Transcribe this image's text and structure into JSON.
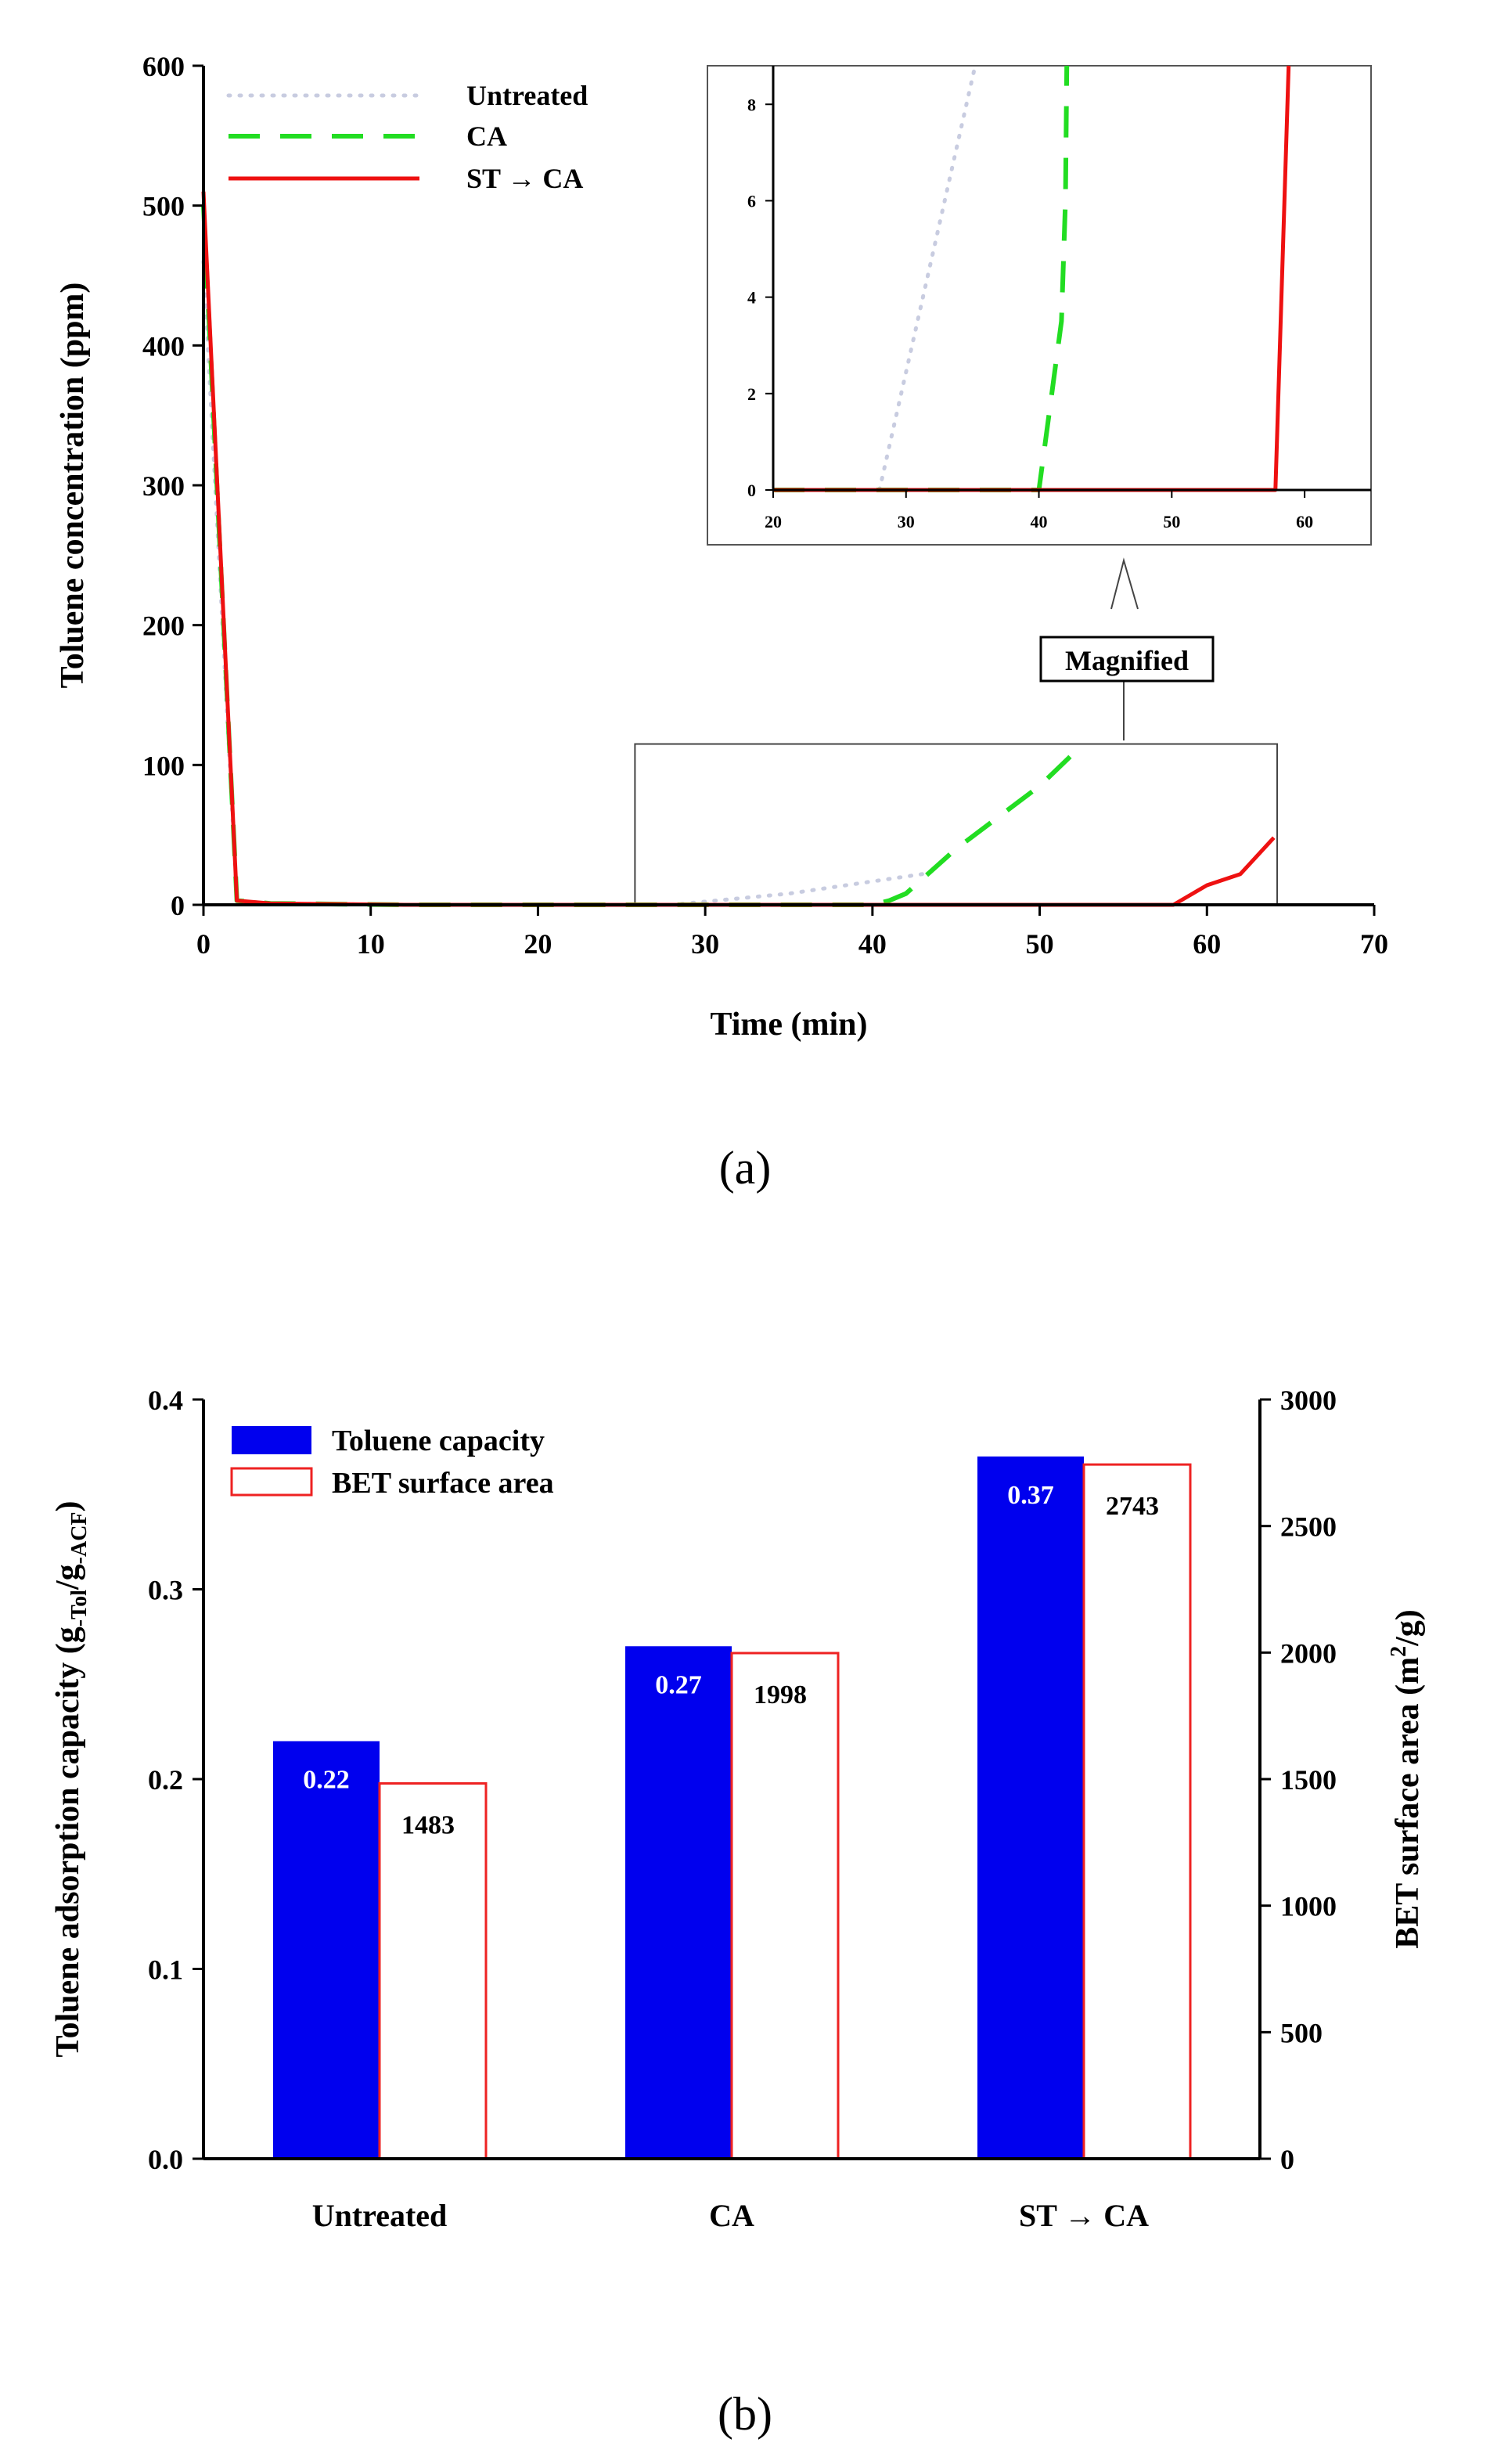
{
  "captions": {
    "a": "(a)",
    "b": "(b)"
  },
  "colors": {
    "untreated": "#c8cce0",
    "ca": "#22dd22",
    "stca": "#ee1111",
    "bar_fill": "#0000ee",
    "bar_outline": "#ee2222"
  },
  "chart_data": [
    {
      "id": "a",
      "type": "line",
      "title": "",
      "xlabel": "Time (min)",
      "ylabel": "Toluene concentration (ppm)",
      "xlim": [
        0,
        70
      ],
      "ylim": [
        0,
        600
      ],
      "xticks": [
        "0",
        "10",
        "20",
        "30",
        "40",
        "50",
        "60",
        "70"
      ],
      "yticks": [
        "0",
        "100",
        "200",
        "300",
        "400",
        "500",
        "600"
      ],
      "legend_position": "top-left",
      "series": [
        {
          "name": "Untreated",
          "style": "dotted",
          "x": [
            0,
            2,
            4,
            8,
            12,
            20,
            28,
            35,
            43
          ],
          "y": [
            460,
            3,
            1,
            0.5,
            0,
            0,
            0,
            8,
            22
          ]
        },
        {
          "name": "CA",
          "style": "dashed",
          "x": [
            0,
            2,
            4,
            8,
            12,
            20,
            30,
            40,
            41,
            42,
            45,
            50,
            52
          ],
          "y": [
            500,
            3,
            1,
            0.5,
            0,
            0,
            0,
            0,
            3,
            8,
            40,
            85,
            108
          ]
        },
        {
          "name": "ST → CA",
          "style": "solid",
          "x": [
            0,
            2,
            4,
            8,
            12,
            20,
            30,
            40,
            50,
            58,
            60,
            62,
            64
          ],
          "y": [
            510,
            3,
            1,
            0.5,
            0,
            0,
            0,
            0,
            0,
            0,
            14,
            22,
            48
          ]
        }
      ],
      "magnify_box": {
        "x": [
          25.8,
          64.2
        ],
        "y": [
          0,
          115
        ]
      },
      "annotation": "Magnified",
      "inset": {
        "xlim": [
          20,
          65
        ],
        "ylim": [
          0,
          8.8
        ],
        "xticks": [
          "20",
          "30",
          "40",
          "50",
          "60"
        ],
        "yticks": [
          "0",
          "2",
          "4",
          "6",
          "8"
        ],
        "series": [
          {
            "name": "Untreated",
            "x": [
              28,
              35.2
            ],
            "y": [
              0,
              8.8
            ]
          },
          {
            "name": "CA",
            "x": [
              20,
              40,
              41.7,
              42,
              42.1
            ],
            "y": [
              0,
              0,
              3.5,
              6,
              8.8
            ]
          },
          {
            "name": "ST → CA",
            "x": [
              20,
              57.8,
              58.8
            ],
            "y": [
              0,
              0,
              8.8
            ]
          }
        ]
      }
    },
    {
      "id": "b",
      "type": "bar",
      "title": "",
      "categories": [
        "Untreated",
        "CA",
        "ST → CA"
      ],
      "ylabel_left_main": "Toluene adsorption capacity (g",
      "ylabel_left_sub1": "-Tol",
      "ylabel_left_mid": "/g",
      "ylabel_left_sub2": "-ACF",
      "ylabel_left_end": ")",
      "ylabel_right_main": "BET surface area (m",
      "ylabel_right_sup": "2",
      "ylabel_right_end": "/g)",
      "ylim_left": [
        0,
        0.4
      ],
      "ylim_right": [
        0,
        3000
      ],
      "yticks_left": [
        "0.0",
        "0.1",
        "0.2",
        "0.3",
        "0.4"
      ],
      "yticks_right": [
        "0",
        "500",
        "1000",
        "1500",
        "2000",
        "2500",
        "3000"
      ],
      "legend_position": "top-left",
      "series": [
        {
          "name": "Toluene capacity",
          "axis": "left",
          "values": [
            0.22,
            0.27,
            0.37
          ],
          "labels": [
            "0.22",
            "0.27",
            "0.37"
          ]
        },
        {
          "name": "BET surface area",
          "axis": "right",
          "values": [
            1483,
            1998,
            2743
          ],
          "labels": [
            "1483",
            "1998",
            "2743"
          ]
        }
      ]
    }
  ]
}
